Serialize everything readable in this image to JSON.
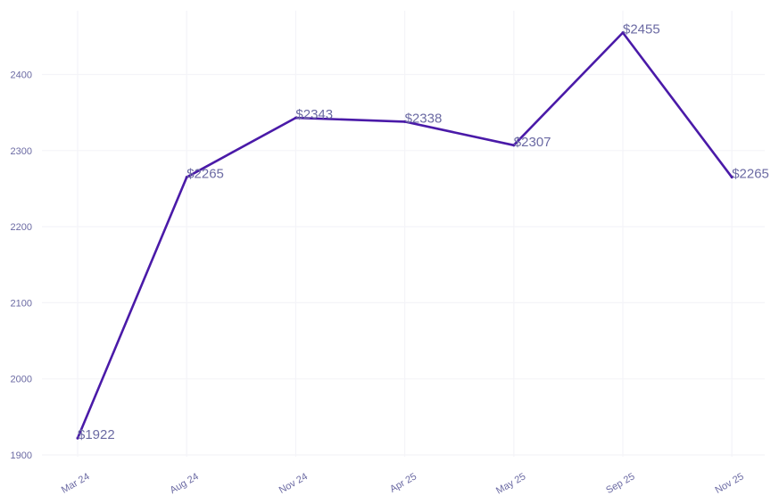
{
  "chart_data": {
    "type": "line",
    "x": [
      "Mar 24",
      "Aug 24",
      "Nov 24",
      "Apr 25",
      "May 25",
      "Sep 25",
      "Nov 25"
    ],
    "series": [
      {
        "values": [
          1922,
          2265,
          2343,
          2338,
          2307,
          2455,
          2265
        ]
      }
    ],
    "data_labels": [
      "$1922",
      "$2265",
      "$2343",
      "$2338",
      "$2307",
      "$2455",
      "$2265"
    ],
    "y_ticks": [
      1900,
      2000,
      2100,
      2200,
      2300,
      2400
    ],
    "ylim": [
      1900,
      2480
    ],
    "grid": true,
    "line_color": "#4a1aa8",
    "text_color": "#6b6aa3"
  }
}
